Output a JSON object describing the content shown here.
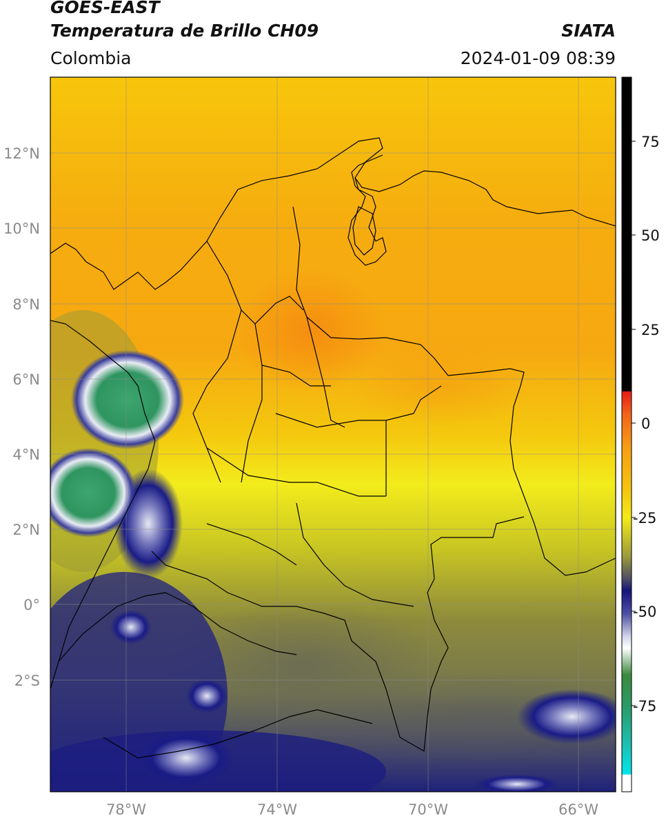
{
  "header": {
    "satellite": "GOES-EAST",
    "product": "Temperatura de Brillo CH09",
    "region": "Colombia",
    "agency": "SIATA",
    "datetime": "2024-01-09 08:39"
  },
  "map": {
    "lon_range": [
      -80,
      -65
    ],
    "lat_range": [
      -5,
      14
    ],
    "lat_ticks": [
      "12°N",
      "10°N",
      "8°N",
      "6°N",
      "4°N",
      "2°N",
      "0°",
      "2°S"
    ],
    "lon_ticks": [
      "78°W",
      "74°W",
      "70°W",
      "66°W"
    ],
    "grid": true
  },
  "colorbar": {
    "ticks": [
      "75",
      "50",
      "25",
      "0",
      "-25",
      "-50",
      "-75"
    ],
    "colors": {
      "warm": "#000000",
      "red": "#e8161a",
      "orange": "#f79a10",
      "yellow": "#f3ec1c",
      "olive": "#77784a",
      "navy": "#13137a",
      "white": "#ffffff",
      "green": "#2f8f3c",
      "teal": "#27c6b4",
      "cyan": "#04e4e8"
    }
  }
}
